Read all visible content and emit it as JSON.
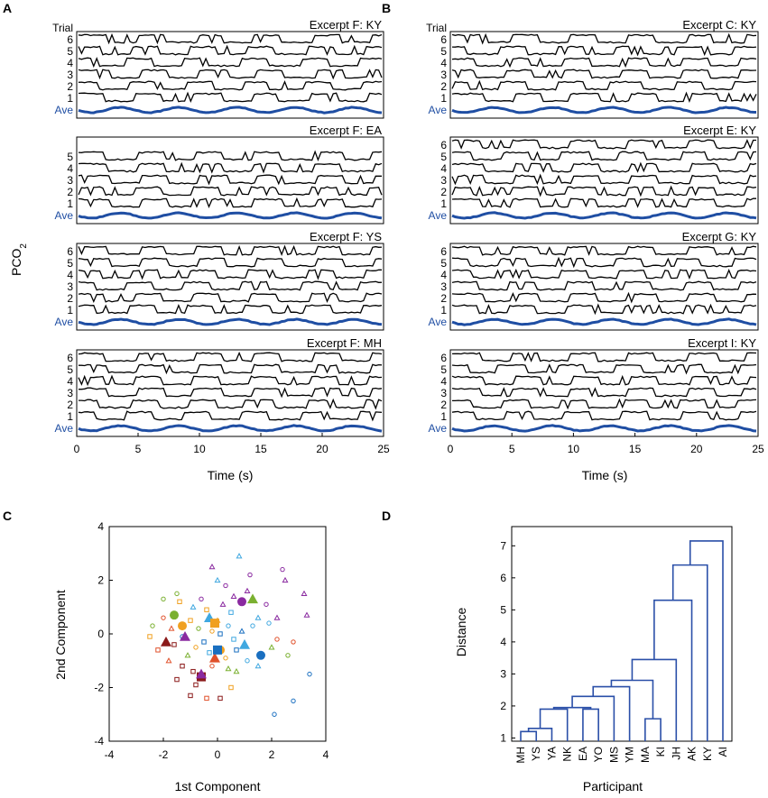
{
  "figure": {
    "panel_labels": [
      "A",
      "B",
      "C",
      "D"
    ],
    "pco2_label_main": "PCO",
    "pco2_label_sub": "2",
    "time_label": "Time (s)",
    "trial_header": "Trial",
    "ave_label": "Ave",
    "ave_color": "#1f4ea3",
    "trace_color": "#000000"
  },
  "chart_data": [
    {
      "type": "line",
      "panel": "A",
      "xlabel": "Time (s)",
      "ylabel": "PCO2",
      "xlim": [
        0,
        25
      ],
      "xticks": [
        "0",
        "5",
        "10",
        "15",
        "20",
        "25"
      ],
      "subplots": [
        {
          "title": "Excerpt F: KY",
          "trials": [
            "6",
            "5",
            "4",
            "3",
            "2",
            "1"
          ],
          "show_trial_header": true,
          "seed": 11
        },
        {
          "title": "Excerpt F: EA",
          "trials": [
            "5",
            "4",
            "3",
            "2",
            "1"
          ],
          "show_trial_header": false,
          "seed": 23
        },
        {
          "title": "Excerpt F: YS",
          "trials": [
            "6",
            "5",
            "4",
            "3",
            "2",
            "1"
          ],
          "show_trial_header": false,
          "seed": 37
        },
        {
          "title": "Excerpt F: MH",
          "trials": [
            "6",
            "5",
            "4",
            "3",
            "2",
            "1"
          ],
          "show_trial_header": false,
          "seed": 41
        }
      ]
    },
    {
      "type": "line",
      "panel": "B",
      "xlabel": "Time (s)",
      "xlim": [
        0,
        25
      ],
      "xticks": [
        "0",
        "5",
        "10",
        "15",
        "20",
        "25"
      ],
      "subplots": [
        {
          "title": "Excerpt C: KY",
          "trials": [
            "6",
            "5",
            "4",
            "3",
            "2",
            "1"
          ],
          "show_trial_header": true,
          "seed": 53
        },
        {
          "title": "Excerpt E: KY",
          "trials": [
            "6",
            "5",
            "4",
            "3",
            "2",
            "1"
          ],
          "show_trial_header": false,
          "seed": 67
        },
        {
          "title": "Excerpt G: KY",
          "trials": [
            "6",
            "5",
            "4",
            "3",
            "2",
            "1"
          ],
          "show_trial_header": false,
          "seed": 71
        },
        {
          "title": "Excerpt I: KY",
          "trials": [
            "6",
            "5",
            "4",
            "3",
            "2",
            "1"
          ],
          "show_trial_header": false,
          "seed": 89
        }
      ]
    },
    {
      "type": "scatter",
      "panel": "C",
      "xlabel": "1st Component",
      "ylabel": "2nd Component",
      "xlim": [
        -4,
        4
      ],
      "ylim": [
        -4,
        4
      ],
      "xticks": [
        "-4",
        "-2",
        "0",
        "2",
        "4"
      ],
      "yticks": [
        "4",
        "2",
        "0",
        "-2",
        "-4"
      ],
      "marker_colors": [
        "#8b1a1a",
        "#e0502a",
        "#f0a020",
        "#7ab030",
        "#1a6fc0",
        "#40a8e0",
        "#8a2aa0"
      ],
      "large_points": [
        {
          "x": -1.6,
          "y": 0.7,
          "shape": "circle",
          "color": "#7ab030"
        },
        {
          "x": 0.9,
          "y": 1.2,
          "shape": "circle",
          "color": "#8a2aa0"
        },
        {
          "x": 1.6,
          "y": -0.8,
          "shape": "circle",
          "color": "#1a6fc0"
        },
        {
          "x": 1.3,
          "y": 1.3,
          "shape": "triangle",
          "color": "#7ab030"
        },
        {
          "x": -1.9,
          "y": -0.3,
          "shape": "triangle",
          "color": "#8b1a1a"
        },
        {
          "x": -1.2,
          "y": -0.1,
          "shape": "triangle",
          "color": "#8a2aa0"
        },
        {
          "x": -0.3,
          "y": 0.6,
          "shape": "triangle",
          "color": "#40a8e0"
        },
        {
          "x": 0.1,
          "y": -0.6,
          "shape": "circle",
          "color": "#f0a020"
        },
        {
          "x": -0.6,
          "y": -1.6,
          "shape": "square",
          "color": "#8b1a1a"
        },
        {
          "x": -0.6,
          "y": -1.5,
          "shape": "triangle",
          "color": "#8a2aa0"
        },
        {
          "x": -0.1,
          "y": -0.9,
          "shape": "triangle",
          "color": "#e0502a"
        },
        {
          "x": 0.0,
          "y": -0.6,
          "shape": "square",
          "color": "#1a6fc0"
        },
        {
          "x": -0.1,
          "y": 0.4,
          "shape": "square",
          "color": "#f0a020"
        },
        {
          "x": -1.3,
          "y": 0.3,
          "shape": "circle",
          "color": "#f0a020"
        },
        {
          "x": 1.0,
          "y": -0.4,
          "shape": "triangle",
          "color": "#40a8e0"
        }
      ],
      "small_points": [
        {
          "x": 0.0,
          "y": 2.0,
          "shape": "triangle",
          "color": "#40a8e0"
        },
        {
          "x": 0.8,
          "y": 2.9,
          "shape": "triangle",
          "color": "#40a8e0"
        },
        {
          "x": -0.2,
          "y": 2.5,
          "shape": "triangle",
          "color": "#8a2aa0"
        },
        {
          "x": 0.3,
          "y": 1.8,
          "shape": "circle",
          "color": "#8a2aa0"
        },
        {
          "x": 2.4,
          "y": 2.4,
          "shape": "circle",
          "color": "#8a2aa0"
        },
        {
          "x": 2.5,
          "y": 2.0,
          "shape": "triangle",
          "color": "#8a2aa0"
        },
        {
          "x": 3.2,
          "y": 1.5,
          "shape": "triangle",
          "color": "#8a2aa0"
        },
        {
          "x": 3.3,
          "y": 0.7,
          "shape": "triangle",
          "color": "#8a2aa0"
        },
        {
          "x": 2.2,
          "y": 0.6,
          "shape": "triangle",
          "color": "#8a2aa0"
        },
        {
          "x": 2.8,
          "y": -0.3,
          "shape": "circle",
          "color": "#e0502a"
        },
        {
          "x": 2.6,
          "y": -0.8,
          "shape": "circle",
          "color": "#7ab030"
        },
        {
          "x": 3.4,
          "y": -1.5,
          "shape": "circle",
          "color": "#1a6fc0"
        },
        {
          "x": 2.8,
          "y": -2.5,
          "shape": "circle",
          "color": "#1a6fc0"
        },
        {
          "x": 2.1,
          "y": -3.0,
          "shape": "circle",
          "color": "#1a6fc0"
        },
        {
          "x": 1.9,
          "y": 0.4,
          "shape": "circle",
          "color": "#40a8e0"
        },
        {
          "x": 1.5,
          "y": -1.2,
          "shape": "triangle",
          "color": "#40a8e0"
        },
        {
          "x": 0.7,
          "y": -1.4,
          "shape": "triangle",
          "color": "#7ab030"
        },
        {
          "x": 0.5,
          "y": -2.0,
          "shape": "square",
          "color": "#f0a020"
        },
        {
          "x": 0.1,
          "y": -2.4,
          "shape": "square",
          "color": "#8b1a1a"
        },
        {
          "x": -0.4,
          "y": -2.4,
          "shape": "square",
          "color": "#e0502a"
        },
        {
          "x": -1.0,
          "y": -2.3,
          "shape": "square",
          "color": "#8b1a1a"
        },
        {
          "x": -0.8,
          "y": -1.9,
          "shape": "square",
          "color": "#8b1a1a"
        },
        {
          "x": -1.5,
          "y": -1.7,
          "shape": "square",
          "color": "#8b1a1a"
        },
        {
          "x": -1.3,
          "y": -1.2,
          "shape": "square",
          "color": "#8b1a1a"
        },
        {
          "x": -1.8,
          "y": -1.0,
          "shape": "triangle",
          "color": "#e0502a"
        },
        {
          "x": -2.2,
          "y": -0.6,
          "shape": "square",
          "color": "#e0502a"
        },
        {
          "x": -2.4,
          "y": 0.3,
          "shape": "circle",
          "color": "#7ab030"
        },
        {
          "x": -2.5,
          "y": -0.1,
          "shape": "square",
          "color": "#f0a020"
        },
        {
          "x": -2.0,
          "y": 1.3,
          "shape": "circle",
          "color": "#7ab030"
        },
        {
          "x": -1.5,
          "y": 1.5,
          "shape": "circle",
          "color": "#7ab030"
        },
        {
          "x": -1.4,
          "y": 1.2,
          "shape": "square",
          "color": "#f0a020"
        },
        {
          "x": -0.9,
          "y": 1.0,
          "shape": "triangle",
          "color": "#40a8e0"
        },
        {
          "x": -0.6,
          "y": 1.3,
          "shape": "circle",
          "color": "#8a2aa0"
        },
        {
          "x": -0.4,
          "y": 0.9,
          "shape": "square",
          "color": "#f0a020"
        },
        {
          "x": 0.2,
          "y": 1.1,
          "shape": "triangle",
          "color": "#8a2aa0"
        },
        {
          "x": 0.6,
          "y": 1.4,
          "shape": "triangle",
          "color": "#8a2aa0"
        },
        {
          "x": 1.1,
          "y": 1.6,
          "shape": "triangle",
          "color": "#8a2aa0"
        },
        {
          "x": 1.8,
          "y": 1.1,
          "shape": "circle",
          "color": "#8a2aa0"
        },
        {
          "x": 1.5,
          "y": 0.6,
          "shape": "triangle",
          "color": "#40a8e0"
        },
        {
          "x": 1.3,
          "y": 0.3,
          "shape": "circle",
          "color": "#40a8e0"
        },
        {
          "x": 0.9,
          "y": 0.1,
          "shape": "triangle",
          "color": "#1a6fc0"
        },
        {
          "x": 0.6,
          "y": -0.2,
          "shape": "square",
          "color": "#40a8e0"
        },
        {
          "x": 0.4,
          "y": 0.3,
          "shape": "circle",
          "color": "#40a8e0"
        },
        {
          "x": 0.1,
          "y": 0.0,
          "shape": "square",
          "color": "#1a6fc0"
        },
        {
          "x": -0.2,
          "y": 0.1,
          "shape": "circle",
          "color": "#f0a020"
        },
        {
          "x": -0.5,
          "y": -0.3,
          "shape": "square",
          "color": "#1a6fc0"
        },
        {
          "x": -0.8,
          "y": -0.5,
          "shape": "circle",
          "color": "#f0a020"
        },
        {
          "x": -1.1,
          "y": -0.8,
          "shape": "triangle",
          "color": "#7ab030"
        },
        {
          "x": -1.6,
          "y": -0.4,
          "shape": "square",
          "color": "#8b1a1a"
        },
        {
          "x": -2.0,
          "y": 0.6,
          "shape": "circle",
          "color": "#e0502a"
        },
        {
          "x": -1.7,
          "y": 0.2,
          "shape": "triangle",
          "color": "#e0502a"
        },
        {
          "x": -1.0,
          "y": 0.5,
          "shape": "square",
          "color": "#f0a020"
        },
        {
          "x": -0.7,
          "y": 0.2,
          "shape": "circle",
          "color": "#7ab030"
        },
        {
          "x": -0.3,
          "y": -0.7,
          "shape": "square",
          "color": "#40a8e0"
        },
        {
          "x": 0.3,
          "y": -0.9,
          "shape": "circle",
          "color": "#f0a020"
        },
        {
          "x": 0.7,
          "y": -0.6,
          "shape": "square",
          "color": "#1a6fc0"
        },
        {
          "x": 1.1,
          "y": -1.0,
          "shape": "circle",
          "color": "#40a8e0"
        },
        {
          "x": 0.4,
          "y": -1.3,
          "shape": "triangle",
          "color": "#7ab030"
        },
        {
          "x": -0.2,
          "y": -1.2,
          "shape": "circle",
          "color": "#e0502a"
        },
        {
          "x": -0.9,
          "y": -1.4,
          "shape": "square",
          "color": "#8b1a1a"
        },
        {
          "x": 2.2,
          "y": -0.2,
          "shape": "circle",
          "color": "#e0502a"
        },
        {
          "x": 2.0,
          "y": -0.5,
          "shape": "triangle",
          "color": "#7ab030"
        },
        {
          "x": 1.2,
          "y": 2.2,
          "shape": "circle",
          "color": "#8a2aa0"
        },
        {
          "x": 0.5,
          "y": 0.8,
          "shape": "square",
          "color": "#40a8e0"
        },
        {
          "x": -1.3,
          "y": -0.1,
          "shape": "circle",
          "color": "#1a6fc0"
        },
        {
          "x": 0.0,
          "y": 0.5,
          "shape": "triangle",
          "color": "#f0a020"
        }
      ]
    },
    {
      "type": "dendrogram",
      "panel": "D",
      "xlabel": "Participant",
      "ylabel": "Distance",
      "ylim": [
        0.9,
        7.6
      ],
      "yticks": [
        "7",
        "6",
        "5",
        "4",
        "3",
        "2",
        "1"
      ],
      "leaves": [
        "MH",
        "YS",
        "YA",
        "NK",
        "EA",
        "YO",
        "MS",
        "YM",
        "MA",
        "KI",
        "JH",
        "AK",
        "KY",
        "AI"
      ],
      "line_color": "#2a4fa8",
      "merges": [
        {
          "left": 0,
          "right": 1,
          "height": 1.2
        },
        {
          "left": 14,
          "right": 2,
          "height": 1.3
        },
        {
          "left": 15,
          "right": 3,
          "height": 1.9
        },
        {
          "left": 4,
          "right": 5,
          "height": 1.9
        },
        {
          "left": 16,
          "right": 17,
          "height": 1.95
        },
        {
          "left": 8,
          "right": 9,
          "height": 1.6
        },
        {
          "left": 18,
          "right": 6,
          "height": 2.3
        },
        {
          "left": 20,
          "right": 7,
          "height": 2.6
        },
        {
          "left": 21,
          "right": 19,
          "height": 2.8
        },
        {
          "left": 22,
          "right": 10,
          "height": 3.45
        },
        {
          "left": 23,
          "right": 11,
          "height": 5.3
        },
        {
          "left": 24,
          "right": 12,
          "height": 6.4
        },
        {
          "left": 25,
          "right": 13,
          "height": 7.15
        }
      ]
    }
  ]
}
